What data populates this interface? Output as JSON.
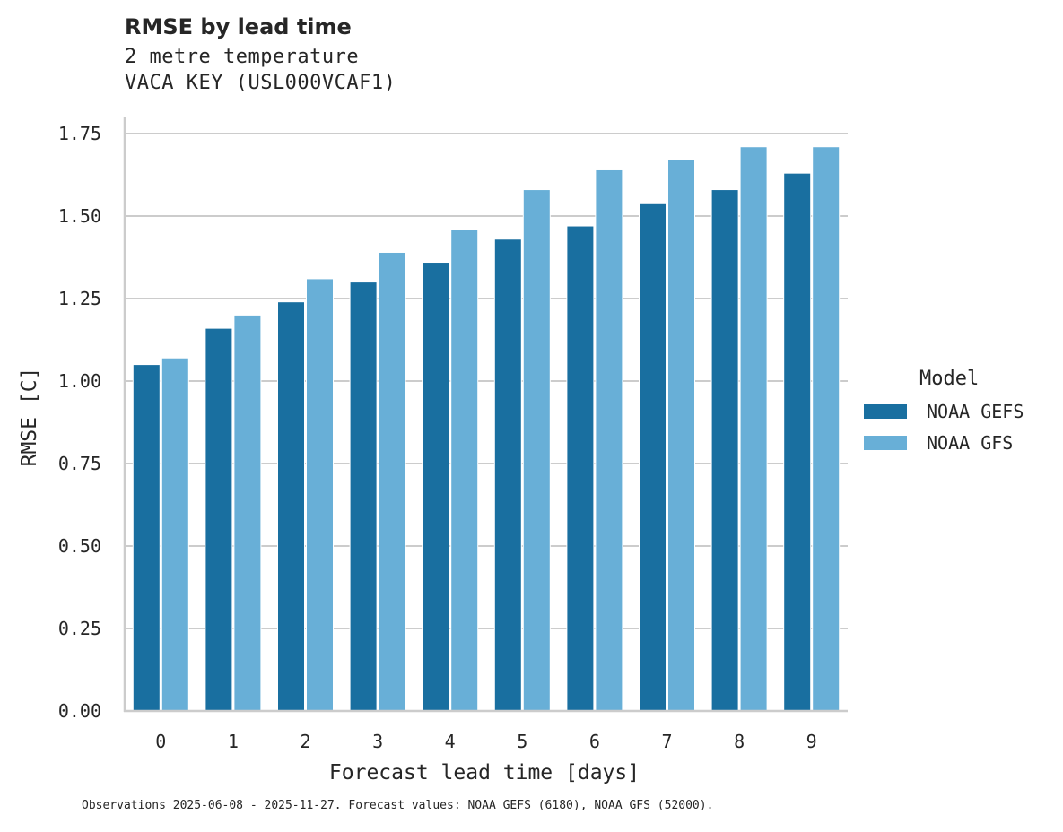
{
  "header": {
    "title": "RMSE by lead time",
    "subtitle_line1": "2 metre temperature",
    "subtitle_line2": "VACA KEY (USL000VCAF1)"
  },
  "footer": {
    "note": "Observations 2025-06-08 - 2025-11-27. Forecast values: NOAA GEFS (6180), NOAA GFS (52000)."
  },
  "legend": {
    "title": "Model",
    "items": [
      {
        "label": "NOAA GEFS",
        "color": "#196fa0"
      },
      {
        "label": "NOAA GFS",
        "color": "#68afd7"
      }
    ]
  },
  "chart_data": {
    "type": "bar",
    "title": "RMSE by lead time",
    "subtitle": "2 metre temperature / VACA KEY (USL000VCAF1)",
    "xlabel": "Forecast lead time [days]",
    "ylabel": "RMSE [C]",
    "categories": [
      "0",
      "1",
      "2",
      "3",
      "4",
      "5",
      "6",
      "7",
      "8",
      "9"
    ],
    "series": [
      {
        "name": "NOAA GEFS",
        "color": "#196fa0",
        "values": [
          1.05,
          1.16,
          1.24,
          1.3,
          1.36,
          1.43,
          1.47,
          1.54,
          1.58,
          1.63
        ]
      },
      {
        "name": "NOAA GFS",
        "color": "#68afd7",
        "values": [
          1.07,
          1.2,
          1.31,
          1.39,
          1.46,
          1.58,
          1.64,
          1.67,
          1.71,
          1.71
        ]
      }
    ],
    "ylim": [
      0,
      1.8
    ],
    "yticks": [
      "0.00",
      "0.25",
      "0.50",
      "0.75",
      "1.00",
      "1.25",
      "1.50",
      "1.75"
    ],
    "grid": "horizontal",
    "legend_position": "right",
    "legend_title": "Model"
  }
}
